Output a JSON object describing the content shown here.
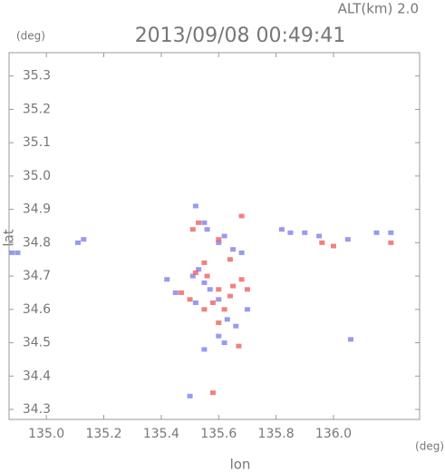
{
  "chart_data": {
    "type": "scatter",
    "title": "2013/09/08 00:49:41",
    "subtitle": "ALT(km) 2.0",
    "y_unit": "(deg)",
    "x_unit": "(deg)",
    "xlabel": "lon",
    "ylabel": "lat",
    "xlim": [
      134.87,
      136.3
    ],
    "ylim": [
      34.27,
      35.37
    ],
    "xticks": [
      {
        "value": 135,
        "label": "135.0"
      },
      135.2,
      135.4,
      135.6,
      135.8,
      {
        "value": 136,
        "label": "136.0"
      }
    ],
    "yticks": [
      34.3,
      34.4,
      34.5,
      34.6,
      34.7,
      34.8,
      34.9,
      {
        "value": 35,
        "label": "35.0"
      },
      35.1,
      35.2,
      35.3
    ],
    "series": [
      {
        "color": "#8080f0",
        "x": [
          134.88,
          134.9,
          135.13,
          135.11,
          135.52,
          135.55,
          135.56,
          135.6,
          135.62,
          135.65,
          135.68,
          135.53,
          135.51,
          135.55,
          135.57,
          135.45,
          135.52,
          135.6,
          135.63,
          135.6,
          135.62,
          135.55,
          135.5,
          135.82,
          135.85,
          135.9,
          135.95,
          136.05,
          136.15,
          136.2,
          136.06,
          135.7,
          135.66,
          135.42
        ],
        "y": [
          34.77,
          34.77,
          34.81,
          34.8,
          34.91,
          34.86,
          34.84,
          34.8,
          34.82,
          34.78,
          34.77,
          34.72,
          34.7,
          34.68,
          34.66,
          34.65,
          34.62,
          34.63,
          34.57,
          34.52,
          34.5,
          34.48,
          34.34,
          34.84,
          34.83,
          34.83,
          34.82,
          34.81,
          34.83,
          34.83,
          34.51,
          34.6,
          34.55,
          34.69
        ]
      },
      {
        "color": "#f06060",
        "x": [
          135.53,
          135.51,
          135.6,
          135.68,
          135.55,
          135.52,
          135.56,
          135.6,
          135.65,
          135.64,
          135.68,
          135.58,
          135.55,
          135.62,
          135.6,
          135.67,
          135.58,
          135.47,
          135.5,
          135.96,
          136.0,
          136.2,
          135.64,
          135.7
        ],
        "y": [
          34.86,
          34.84,
          34.81,
          34.88,
          34.74,
          34.71,
          34.7,
          34.66,
          34.67,
          34.64,
          34.69,
          34.62,
          34.6,
          34.6,
          34.56,
          34.49,
          34.35,
          34.65,
          34.63,
          34.8,
          34.79,
          34.8,
          34.75,
          34.66
        ]
      }
    ]
  }
}
